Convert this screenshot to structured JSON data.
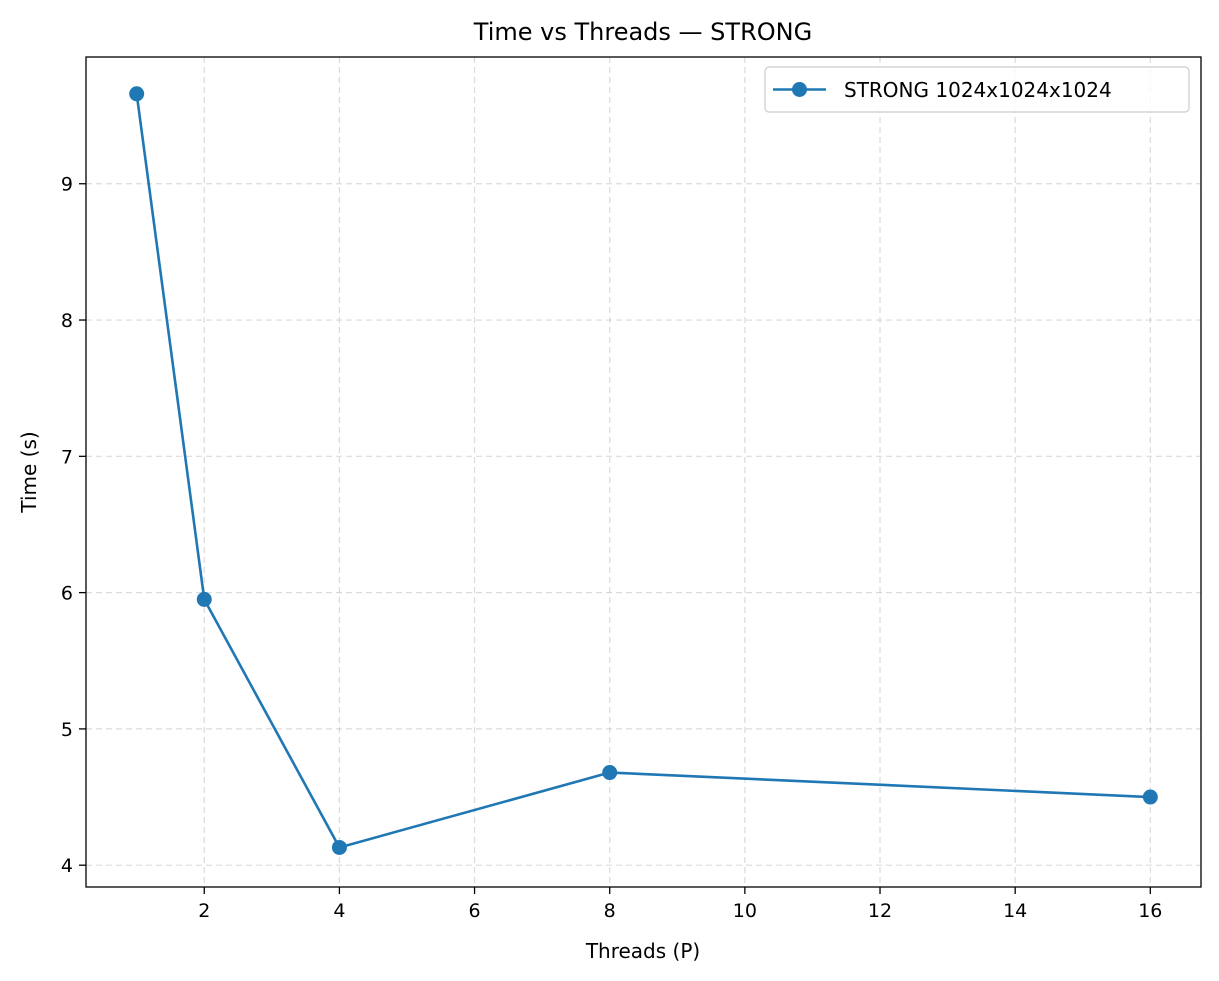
{
  "chart_data": {
    "type": "line",
    "title": "Time vs Threads — STRONG",
    "xlabel": "Threads (P)",
    "ylabel": "Time (s)",
    "xlim": [
      0.25,
      16.75
    ],
    "ylim": [
      3.84,
      9.93
    ],
    "xticks": [
      2,
      4,
      6,
      8,
      10,
      12,
      14,
      16
    ],
    "yticks": [
      4,
      5,
      6,
      7,
      8,
      9
    ],
    "grid": true,
    "legend_position": "top-right",
    "series": [
      {
        "name": "STRONG 1024x1024x1024",
        "color": "#1f77b4",
        "marker": "circle",
        "x": [
          1,
          2,
          4,
          8,
          16
        ],
        "y": [
          9.66,
          5.95,
          4.13,
          4.68,
          4.5
        ]
      }
    ]
  }
}
